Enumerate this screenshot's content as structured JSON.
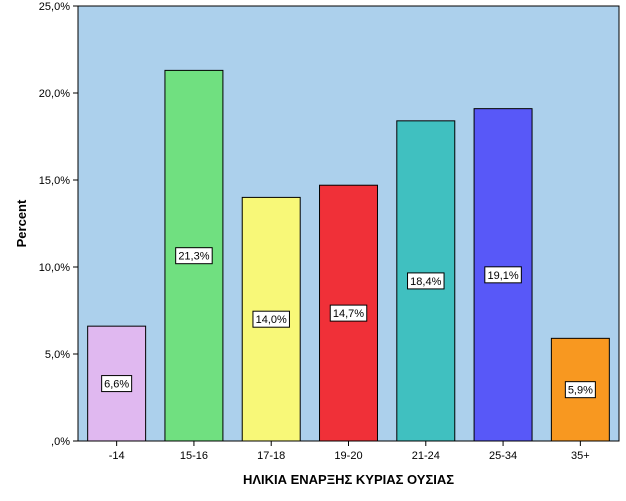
{
  "chart_data": {
    "type": "bar",
    "categories": [
      "-14",
      "15-16",
      "17-18",
      "19-20",
      "21-24",
      "25-34",
      "35+"
    ],
    "values": [
      6.6,
      21.3,
      14.0,
      14.7,
      18.4,
      19.1,
      5.9
    ],
    "data_labels": [
      "6,6%",
      "21,3%",
      "14,0%",
      "14,7%",
      "18,4%",
      "19,1%",
      "5,9%"
    ],
    "colors": [
      "#e0b8f0",
      "#70e080",
      "#f8f878",
      "#f03038",
      "#40c0c0",
      "#5858f8",
      "#f89820"
    ],
    "plot_background": "#acd0ec",
    "title": "",
    "xlabel": "ΗΛΙΚΙΑ ΕΝΑΡΞΗΣ ΚΥΡΙΑΣ ΟΥΣΙΑΣ",
    "ylabel": "Percent",
    "ylim": [
      0,
      25
    ],
    "yticks": [
      0,
      5,
      10,
      15,
      20,
      25
    ],
    "ytick_labels": [
      ",0%",
      "5,0%",
      "10,0%",
      "15,0%",
      "20,0%",
      "25,0%"
    ],
    "grid": false,
    "legend": "none"
  }
}
